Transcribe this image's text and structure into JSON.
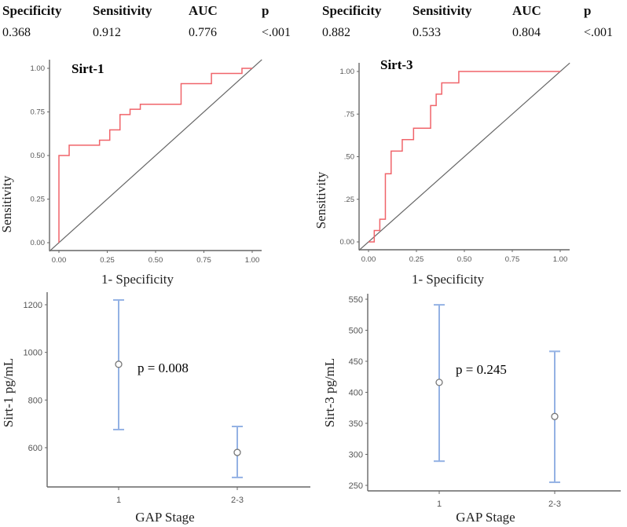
{
  "stats_tables": [
    {
      "headers": [
        "Specificity",
        "Sensitivity",
        "AUC",
        "p"
      ],
      "values": [
        "0.368",
        "0.912",
        "0.776",
        "<.001"
      ]
    },
    {
      "headers": [
        "Specificity",
        "Sensitivity",
        "AUC",
        "p"
      ],
      "values": [
        "0.882",
        "0.533",
        "0.804",
        "<.001"
      ]
    }
  ],
  "colors": {
    "roc_line": "#f0646a",
    "diagonal": "#666666",
    "error_bar": "#94b2e4",
    "axis": "#666666"
  },
  "chart_data": [
    {
      "type": "line",
      "title": "Sirt-1",
      "xlabel": "1- Specificity",
      "ylabel": "Sensitivity",
      "xlim": [
        0,
        1
      ],
      "ylim": [
        0,
        1
      ],
      "xticks": [
        "0.00",
        "0.25",
        "0.50",
        "0.75",
        "1.00"
      ],
      "yticks": [
        "0.00",
        "0.25",
        "0.50",
        "0.75",
        "1.00"
      ],
      "series": [
        {
          "name": "ROC",
          "x": [
            0,
            0,
            0.053,
            0.053,
            0.21,
            0.21,
            0.263,
            0.263,
            0.316,
            0.316,
            0.368,
            0.368,
            0.421,
            0.421,
            0.632,
            0.632,
            0.789,
            0.789,
            0.947,
            0.947,
            1
          ],
          "y": [
            0,
            0.5,
            0.5,
            0.559,
            0.559,
            0.588,
            0.588,
            0.647,
            0.647,
            0.735,
            0.735,
            0.765,
            0.765,
            0.794,
            0.794,
            0.912,
            0.912,
            0.971,
            0.971,
            1,
            1
          ]
        },
        {
          "name": "Reference",
          "x": [
            0,
            1
          ],
          "y": [
            0,
            1
          ]
        }
      ]
    },
    {
      "type": "line",
      "title": "Sirt-3",
      "xlabel": "1- Specificity",
      "ylabel": "Sensitivity",
      "xlim": [
        0,
        1
      ],
      "ylim": [
        0,
        1
      ],
      "xticks": [
        "0.00",
        "0.25",
        "0.50",
        "0.75",
        "1.00"
      ],
      "yticks": [
        "0.00",
        ".25",
        ".50",
        ".75",
        "1.00"
      ],
      "series": [
        {
          "name": "ROC",
          "x": [
            0,
            0.03,
            0.03,
            0.059,
            0.059,
            0.088,
            0.088,
            0.118,
            0.118,
            0.176,
            0.176,
            0.235,
            0.235,
            0.324,
            0.324,
            0.353,
            0.353,
            0.382,
            0.382,
            0.471,
            0.471,
            1
          ],
          "y": [
            0,
            0,
            0.067,
            0.067,
            0.133,
            0.133,
            0.4,
            0.4,
            0.533,
            0.533,
            0.6,
            0.6,
            0.667,
            0.667,
            0.8,
            0.8,
            0.867,
            0.867,
            0.933,
            0.933,
            1,
            1
          ]
        },
        {
          "name": "Reference",
          "x": [
            0,
            1
          ],
          "y": [
            0,
            1
          ]
        }
      ]
    },
    {
      "type": "errorbar",
      "xlabel": "GAP Stage",
      "ylabel": "Sirt-1 pg/mL",
      "categories": [
        "1",
        "2-3"
      ],
      "mean": [
        950,
        580
      ],
      "lower": [
        676,
        475
      ],
      "upper": [
        1220,
        689
      ],
      "yticks": [
        600,
        800,
        1000,
        1200
      ],
      "annotation": "p = 0.008"
    },
    {
      "type": "errorbar",
      "xlabel": "GAP Stage",
      "ylabel": "Sirt-3 pg/mL",
      "categories": [
        "1",
        "2-3"
      ],
      "mean": [
        416,
        361
      ],
      "lower": [
        289,
        255
      ],
      "upper": [
        541,
        466
      ],
      "yticks": [
        250,
        300,
        350,
        400,
        450,
        500,
        550
      ],
      "annotation": "p = 0.245"
    }
  ]
}
